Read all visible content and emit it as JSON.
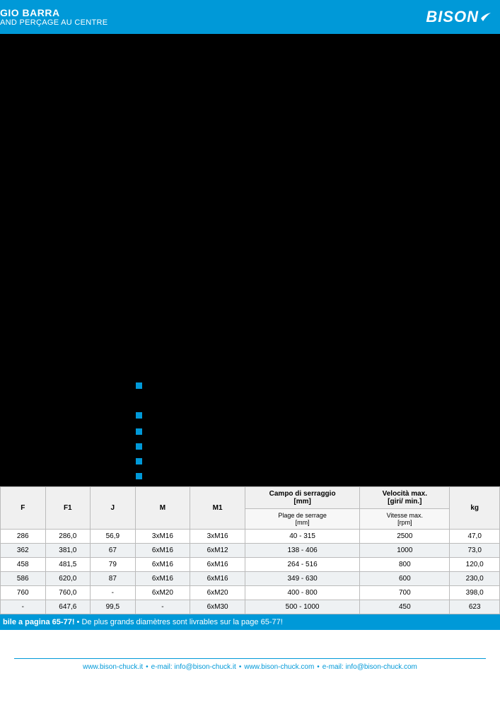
{
  "header": {
    "title_fragment": "GIO BARRA",
    "subtitle_fragment": "AND PERÇAGE AU CENTRE",
    "logo_text": "BISON"
  },
  "bullets_count": 6,
  "table": {
    "columns_top": [
      {
        "label": "F",
        "rowspan": 2
      },
      {
        "label": "F1",
        "rowspan": 2
      },
      {
        "label": "J",
        "rowspan": 2
      },
      {
        "label": "M",
        "rowspan": 2
      },
      {
        "label": "M1",
        "rowspan": 2
      },
      {
        "label": "Campo di serraggio\n[mm]",
        "rowspan": 1
      },
      {
        "label": "Velocità max.\n[giri/ min.]",
        "rowspan": 1
      },
      {
        "label": "kg",
        "rowspan": 2
      }
    ],
    "columns_sub": [
      "Plage de serrage\n[mm]",
      "Vitesse max.\n[rpm]"
    ],
    "rows": [
      [
        "286",
        "286,0",
        "56,9",
        "3xM16",
        "3xM16",
        "40 - 315",
        "2500",
        "47,0"
      ],
      [
        "362",
        "381,0",
        "67",
        "6xM16",
        "6xM12",
        "138 - 406",
        "1000",
        "73,0"
      ],
      [
        "458",
        "481,5",
        "79",
        "6xM16",
        "6xM16",
        "264 - 516",
        "800",
        "120,0"
      ],
      [
        "586",
        "620,0",
        "87",
        "6xM16",
        "6xM16",
        "349 - 630",
        "600",
        "230,0"
      ],
      [
        "760",
        "760,0",
        "-",
        "6xM20",
        "6xM20",
        "400 - 800",
        "700",
        "398,0"
      ],
      [
        "-",
        "647,6",
        "99,5",
        "-",
        "6xM30",
        "500 - 1000",
        "450",
        "623"
      ]
    ],
    "column_widths": [
      "9%",
      "9%",
      "9%",
      "11%",
      "11%",
      "23%",
      "18%",
      "10%"
    ]
  },
  "blue_bar": {
    "text_it": "bile a pagina 65-77!",
    "sep": " • ",
    "text_fr": "De plus grands diamètres sont livrables sur la page 65-77!"
  },
  "footer": {
    "items": [
      "www.bison-chuck.it",
      "e-mail: info@bison-chuck.it",
      "www.bison-chuck.com",
      "e-mail: info@bison-chuck.com"
    ]
  },
  "colors": {
    "brand_blue": "#0099d8",
    "black": "#000000",
    "row_alt": "#eef1f3",
    "header_bg": "#f0f0f0"
  }
}
